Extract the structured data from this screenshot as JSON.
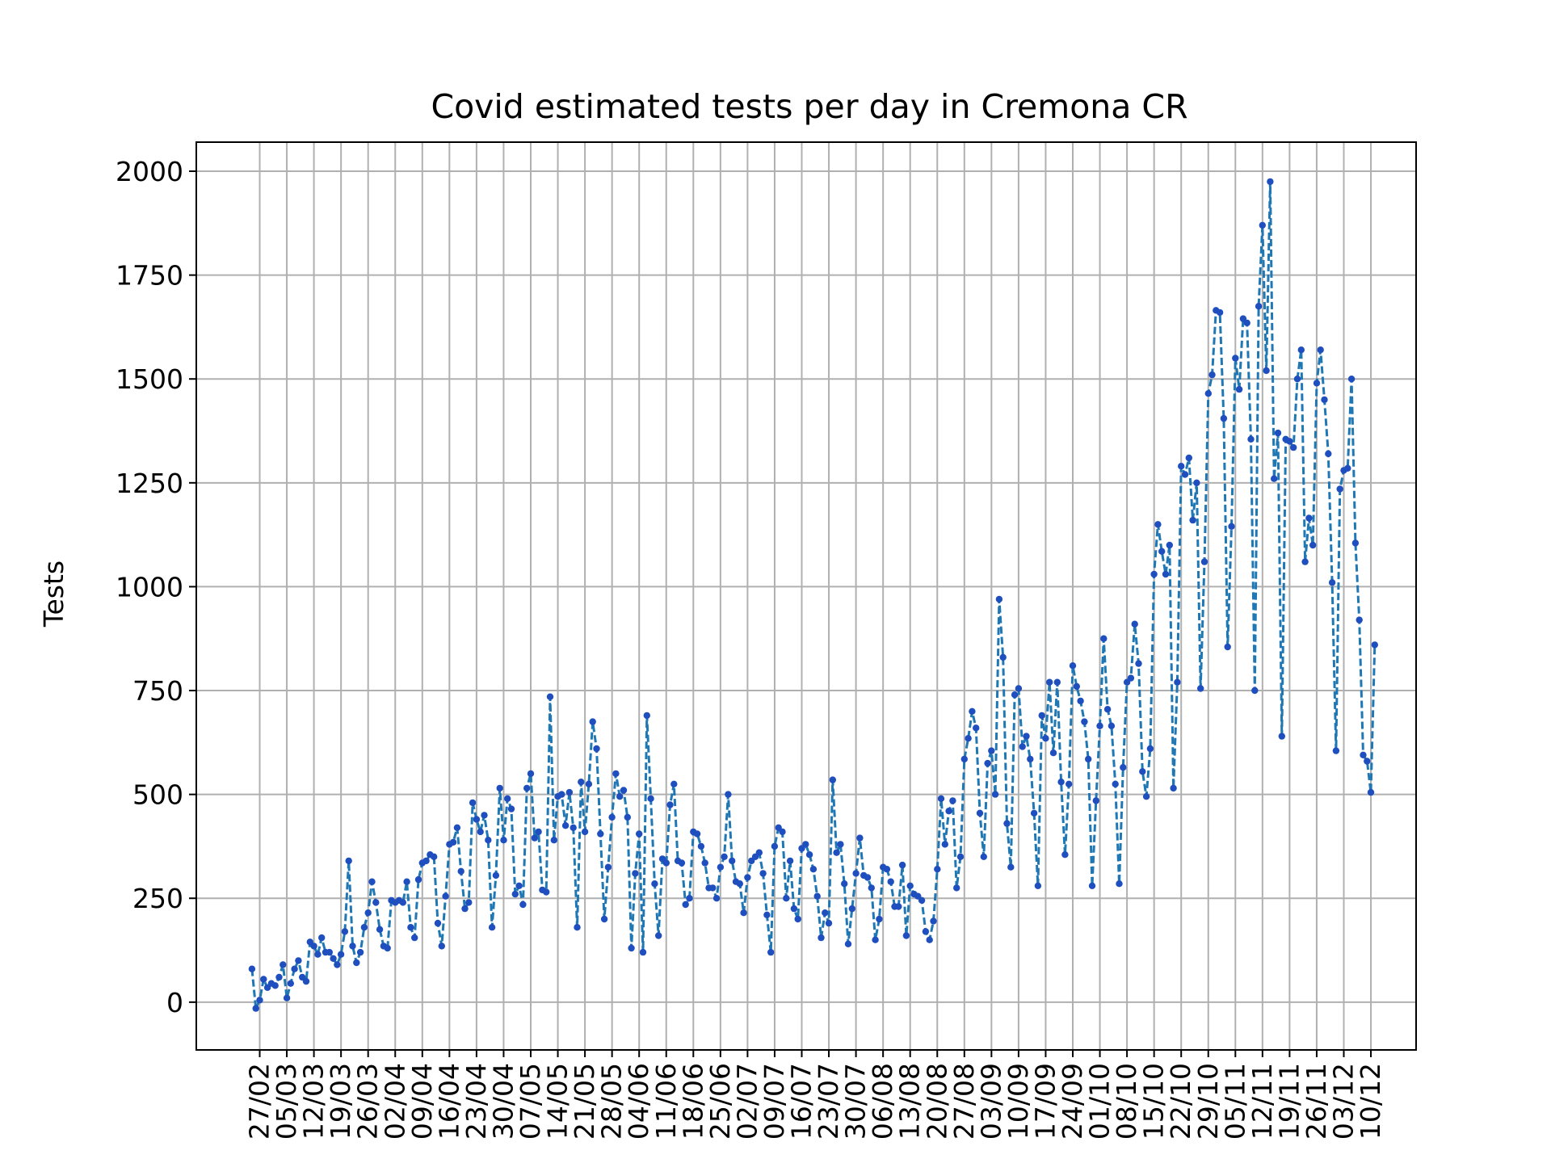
{
  "chart_data": {
    "type": "line",
    "title": "Covid estimated tests per day in Cremona CR",
    "xlabel": "",
    "ylabel": "Tests",
    "ylim": [
      -115,
      2070
    ],
    "yticks": [
      0,
      250,
      500,
      750,
      1000,
      1250,
      1500,
      1750,
      2000
    ],
    "xticks": [
      "27/02",
      "05/03",
      "12/03",
      "19/03",
      "26/03",
      "02/04",
      "09/04",
      "16/04",
      "23/04",
      "30/04",
      "07/05",
      "14/05",
      "21/05",
      "28/05",
      "04/06",
      "11/06",
      "18/06",
      "25/06",
      "02/07",
      "09/07",
      "16/07",
      "23/07",
      "30/07",
      "06/08",
      "13/08",
      "20/08",
      "27/08",
      "03/09",
      "10/09",
      "17/09",
      "24/09",
      "01/10",
      "08/10",
      "15/10",
      "22/10",
      "29/10",
      "05/11",
      "12/11",
      "19/11",
      "26/11",
      "03/12",
      "10/12"
    ],
    "grid": true,
    "series": [
      {
        "color": "#1f77b4",
        "marker_color": "#1f4fbf",
        "line_style": "dashed",
        "values": [
          80,
          -15,
          5,
          55,
          35,
          45,
          40,
          60,
          90,
          10,
          45,
          80,
          100,
          60,
          50,
          145,
          135,
          115,
          155,
          120,
          120,
          105,
          90,
          115,
          170,
          340,
          135,
          95,
          120,
          180,
          215,
          290,
          240,
          175,
          135,
          130,
          245,
          240,
          245,
          240,
          290,
          180,
          155,
          295,
          335,
          340,
          355,
          350,
          190,
          135,
          255,
          380,
          385,
          420,
          315,
          225,
          240,
          480,
          440,
          410,
          450,
          390,
          180,
          305,
          515,
          390,
          490,
          465,
          260,
          280,
          235,
          515,
          550,
          395,
          410,
          270,
          265,
          735,
          390,
          495,
          500,
          425,
          505,
          420,
          180,
          530,
          410,
          525,
          675,
          610,
          405,
          200,
          325,
          445,
          550,
          495,
          510,
          445,
          130,
          310,
          405,
          120,
          690,
          490,
          285,
          160,
          345,
          335,
          475,
          525,
          340,
          335,
          235,
          250,
          410,
          405,
          375,
          335,
          275,
          275,
          250,
          325,
          350,
          500,
          340,
          290,
          285,
          215,
          300,
          340,
          350,
          360,
          310,
          210,
          120,
          375,
          420,
          410,
          250,
          340,
          225,
          200,
          370,
          380,
          355,
          320,
          255,
          155,
          215,
          190,
          535,
          360,
          380,
          285,
          140,
          225,
          310,
          395,
          305,
          300,
          275,
          150,
          200,
          325,
          320,
          290,
          230,
          230,
          330,
          160,
          280,
          260,
          255,
          245,
          170,
          150,
          195,
          320,
          490,
          380,
          460,
          485,
          275,
          350,
          585,
          635,
          700,
          660,
          455,
          350,
          575,
          605,
          500,
          970,
          830,
          430,
          325,
          740,
          755,
          615,
          640,
          585,
          455,
          280,
          690,
          635,
          770,
          600,
          770,
          530,
          355,
          525,
          810,
          760,
          725,
          675,
          585,
          280,
          485,
          665,
          875,
          705,
          665,
          525,
          285,
          565,
          770,
          780,
          910,
          815,
          555,
          495,
          610,
          1030,
          1150,
          1085,
          1030,
          1100,
          515,
          770,
          1290,
          1270,
          1310,
          1160,
          1250,
          755,
          1060,
          1465,
          1510,
          1665,
          1660,
          1405,
          855,
          1145,
          1550,
          1475,
          1645,
          1635,
          1355,
          750,
          1675,
          1870,
          1520,
          1975,
          1260,
          1370,
          640,
          1355,
          1350,
          1335,
          1500,
          1570,
          1060,
          1165,
          1100,
          1490,
          1570,
          1450,
          1320,
          1010,
          605,
          1235,
          1280,
          1285,
          1500,
          1105,
          920,
          595,
          580,
          505,
          860
        ]
      }
    ]
  }
}
